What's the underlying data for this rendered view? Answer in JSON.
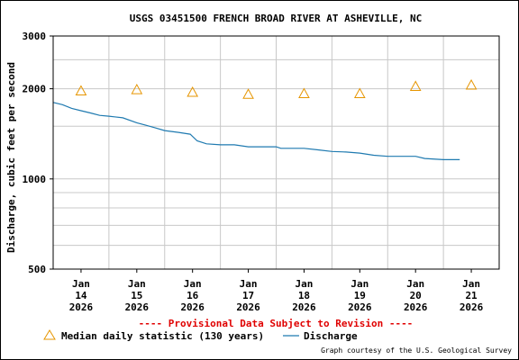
{
  "chart_data": {
    "type": "line",
    "title": "USGS 03451500 FRENCH BROAD RIVER AT ASHEVILLE, NC",
    "ylabel": "Discharge, cubic feet per second",
    "xlabel": "",
    "yscale": "log",
    "ylim": [
      500,
      3000
    ],
    "yticks": [
      "3000",
      "2000",
      "1000",
      "500"
    ],
    "ytick_values": [
      3000,
      2000,
      1000,
      500
    ],
    "xlim": [
      "2026-01-13T12:00",
      "2026-01-21T12:00"
    ],
    "grid": true,
    "legend_position": "bottom",
    "x_ticks": [
      {
        "month": "Jan",
        "day": "14",
        "year": "2026",
        "at": "2026-01-14T00:00"
      },
      {
        "month": "Jan",
        "day": "15",
        "year": "2026",
        "at": "2026-01-15T00:00"
      },
      {
        "month": "Jan",
        "day": "16",
        "year": "2026",
        "at": "2026-01-16T00:00"
      },
      {
        "month": "Jan",
        "day": "17",
        "year": "2026",
        "at": "2026-01-17T00:00"
      },
      {
        "month": "Jan",
        "day": "18",
        "year": "2026",
        "at": "2026-01-18T00:00"
      },
      {
        "month": "Jan",
        "day": "19",
        "year": "2026",
        "at": "2026-01-19T00:00"
      },
      {
        "month": "Jan",
        "day": "20",
        "year": "2026",
        "at": "2026-01-20T00:00"
      },
      {
        "month": "Jan",
        "day": "21",
        "year": "2026",
        "at": "2026-01-21T00:00"
      }
    ],
    "series": [
      {
        "name": "Median daily statistic (130 years)",
        "kind": "markers",
        "marker": "triangle",
        "color": "#e69500",
        "points": [
          {
            "x": "2026-01-14T00:00",
            "y": 1960
          },
          {
            "x": "2026-01-15T00:00",
            "y": 1980
          },
          {
            "x": "2026-01-16T00:00",
            "y": 1940
          },
          {
            "x": "2026-01-17T00:00",
            "y": 1910
          },
          {
            "x": "2026-01-18T00:00",
            "y": 1920
          },
          {
            "x": "2026-01-19T00:00",
            "y": 1920
          },
          {
            "x": "2026-01-20T00:00",
            "y": 2030
          },
          {
            "x": "2026-01-21T00:00",
            "y": 2050
          }
        ]
      },
      {
        "name": "Discharge",
        "kind": "line",
        "color": "#1f7ab0",
        "points": [
          {
            "x": "2026-01-13T12:00",
            "y": 1800
          },
          {
            "x": "2026-01-13T16:00",
            "y": 1770
          },
          {
            "x": "2026-01-13T20:00",
            "y": 1720
          },
          {
            "x": "2026-01-14T00:00",
            "y": 1690
          },
          {
            "x": "2026-01-14T04:00",
            "y": 1660
          },
          {
            "x": "2026-01-14T08:00",
            "y": 1630
          },
          {
            "x": "2026-01-14T12:00",
            "y": 1620
          },
          {
            "x": "2026-01-14T18:00",
            "y": 1600
          },
          {
            "x": "2026-01-15T00:00",
            "y": 1540
          },
          {
            "x": "2026-01-15T04:00",
            "y": 1510
          },
          {
            "x": "2026-01-15T08:00",
            "y": 1480
          },
          {
            "x": "2026-01-15T12:00",
            "y": 1450
          },
          {
            "x": "2026-01-15T18:00",
            "y": 1430
          },
          {
            "x": "2026-01-15T23:00",
            "y": 1410
          },
          {
            "x": "2026-01-16T02:00",
            "y": 1340
          },
          {
            "x": "2026-01-16T06:00",
            "y": 1310
          },
          {
            "x": "2026-01-16T12:00",
            "y": 1300
          },
          {
            "x": "2026-01-16T18:00",
            "y": 1300
          },
          {
            "x": "2026-01-17T00:00",
            "y": 1280
          },
          {
            "x": "2026-01-17T12:00",
            "y": 1280
          },
          {
            "x": "2026-01-17T14:00",
            "y": 1265
          },
          {
            "x": "2026-01-18T00:00",
            "y": 1265
          },
          {
            "x": "2026-01-18T06:00",
            "y": 1250
          },
          {
            "x": "2026-01-18T12:00",
            "y": 1235
          },
          {
            "x": "2026-01-18T18:00",
            "y": 1230
          },
          {
            "x": "2026-01-19T00:00",
            "y": 1220
          },
          {
            "x": "2026-01-19T06:00",
            "y": 1200
          },
          {
            "x": "2026-01-19T12:00",
            "y": 1190
          },
          {
            "x": "2026-01-19T18:00",
            "y": 1190
          },
          {
            "x": "2026-01-20T00:00",
            "y": 1190
          },
          {
            "x": "2026-01-20T04:00",
            "y": 1170
          },
          {
            "x": "2026-01-20T12:00",
            "y": 1160
          },
          {
            "x": "2026-01-20T18:00",
            "y": 1160
          },
          {
            "x": "2026-01-20T19:00",
            "y": 1160
          }
        ]
      }
    ],
    "annotations": {
      "provisional": "---- Provisional Data Subject to Revision ----",
      "credit": "Graph courtesy of the U.S. Geological Survey"
    },
    "colors": {
      "provisional": "#e00000",
      "grid": "#c8c8c8",
      "axis": "#000000"
    }
  }
}
